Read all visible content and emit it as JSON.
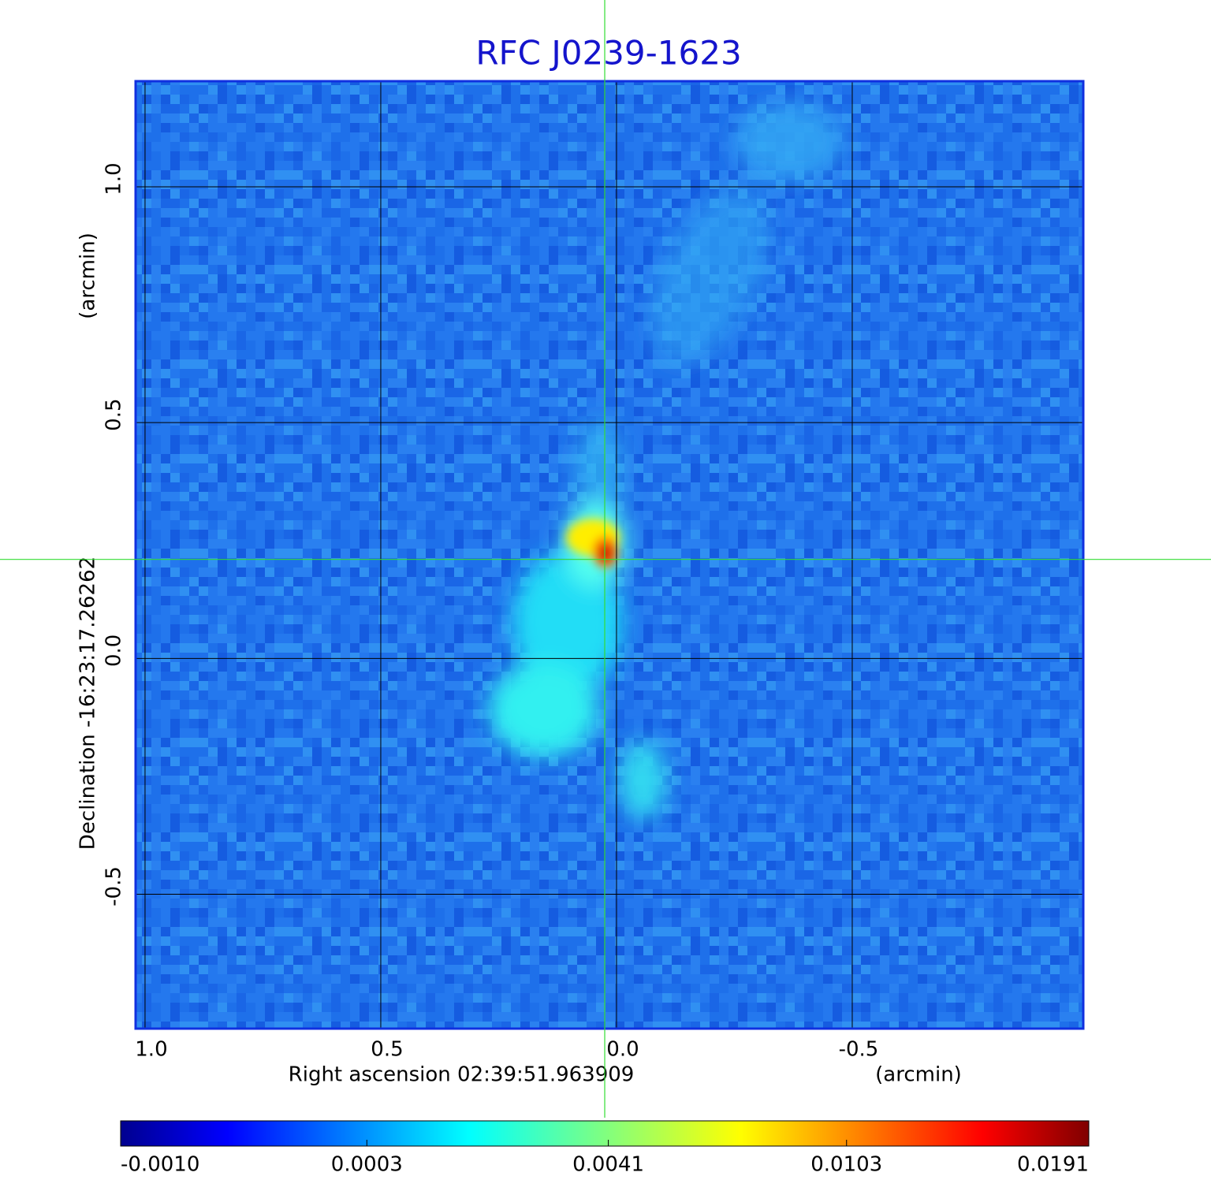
{
  "chart_data": {
    "type": "image",
    "title": "RFC J0239-1623",
    "x_label": "Right ascension  02:39:51.963909",
    "x_unit": "(arcmin)",
    "y_label": "Declination  -16:23:17.26262",
    "y_unit": "(arcmin)",
    "xlim": [
      1.02,
      -0.99
    ],
    "ylim": [
      -0.785,
      1.224
    ],
    "xticks": [
      {
        "value": 1,
        "label": "1.0"
      },
      0.5,
      {
        "value": 0,
        "label": "0.0"
      },
      -0.5
    ],
    "yticks": [
      {
        "value": 1,
        "label": "1.0"
      },
      0.5,
      {
        "value": 0,
        "label": "0.0"
      },
      -0.5
    ],
    "grid": true,
    "crosshair": [
      0.025,
      0.21
    ],
    "colorbar_scale": "sqrt",
    "clim": [
      -0.001,
      0.0191
    ],
    "colorbar_ticks": [
      {
        "value": -0.001,
        "label": "-0.0010"
      },
      {
        "value": 0.0003,
        "label": "0.0003"
      },
      {
        "value": 0.0041,
        "label": "0.0041"
      },
      {
        "value": 0.0103,
        "label": "0.0103"
      },
      {
        "value": 0.0191,
        "label": "0.0191"
      }
    ]
  }
}
